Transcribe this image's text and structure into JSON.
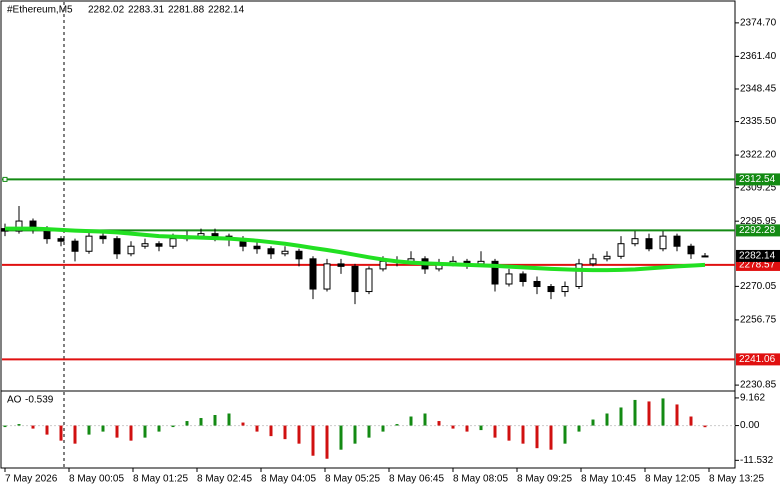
{
  "chart_data": {
    "type": "candlestick",
    "symbol": "#Ethereum,M5",
    "open": [
      2293,
      2292,
      2296,
      2293,
      2289,
      2288,
      2284,
      2290,
      2289,
      2283,
      2286,
      2287,
      2286,
      2289,
      2290,
      2291,
      2290,
      2289,
      2286,
      2285,
      2283,
      2284,
      2281,
      2269,
      2279,
      2278,
      2268,
      2277,
      2280,
      2280,
      2281,
      2277,
      2279,
      2280,
      2279,
      2280,
      2271,
      2275,
      2272,
      2270,
      2268,
      2270,
      2279,
      2281,
      2282,
      2287,
      2289,
      2285,
      2290,
      2286,
      2282.02
    ],
    "high": [
      2295,
      2302,
      2297,
      2294,
      2290,
      2289,
      2292,
      2292,
      2290,
      2288,
      2289,
      2288,
      2291,
      2292,
      2293,
      2293,
      2291,
      2290,
      2288,
      2286,
      2286,
      2285,
      2282,
      2281,
      2281,
      2279,
      2278,
      2282,
      2282,
      2284,
      2282,
      2281,
      2282,
      2281,
      2284,
      2281,
      2277,
      2276,
      2274,
      2271,
      2272,
      2281,
      2283,
      2284,
      2290,
      2292,
      2291,
      2292,
      2291,
      2287,
      2283.31
    ],
    "low": [
      2290,
      2291,
      2291,
      2287,
      2286,
      2280,
      2283,
      2287,
      2281,
      2282,
      2285,
      2284,
      2285,
      2288,
      2289,
      2288,
      2286,
      2284,
      2283,
      2281,
      2282,
      2278,
      2265,
      2268,
      2275,
      2263,
      2267,
      2276,
      2278,
      2279,
      2275,
      2276,
      2278,
      2277,
      2278,
      2268,
      2270,
      2270,
      2267,
      2265,
      2266,
      2269,
      2278,
      2280,
      2281,
      2286,
      2284,
      2284,
      2284,
      2281,
      2281.88
    ],
    "close": [
      2292,
      2296,
      2293,
      2289,
      2288,
      2284,
      2290,
      2289,
      2283,
      2286,
      2287,
      2286,
      2289,
      2290,
      2291,
      2290,
      2289,
      2286,
      2285,
      2283,
      2284,
      2281,
      2269,
      2279,
      2278,
      2268,
      2277,
      2280,
      2280,
      2281,
      2277,
      2279,
      2280,
      2279,
      2280,
      2271,
      2275,
      2272,
      2270,
      2268,
      2270,
      2279,
      2281,
      2282,
      2287,
      2289,
      2285,
      2290,
      2286,
      2283,
      2282.14
    ],
    "ma": {
      "color": "#22e022",
      "values": [
        2293,
        2293,
        2293,
        2292.8,
        2292.5,
        2292.2,
        2292,
        2291.8,
        2291.5,
        2291,
        2290.5,
        2290,
        2289.8,
        2289.6,
        2289.4,
        2289.2,
        2289,
        2288.6,
        2288.2,
        2287.6,
        2287,
        2286.2,
        2285.3,
        2284.5,
        2283.6,
        2282.6,
        2281.6,
        2280.7,
        2280,
        2279.5,
        2279.2,
        2279,
        2278.8,
        2278.6,
        2278.4,
        2278.2,
        2277.9,
        2277.6,
        2277.3,
        2277,
        2276.8,
        2276.6,
        2276.5,
        2276.5,
        2276.6,
        2276.8,
        2277.2,
        2277.6,
        2278,
        2278.3,
        2278.6
      ]
    },
    "levels": [
      {
        "value": 2312.54,
        "color": "#138a13"
      },
      {
        "value": 2292.28,
        "color": "#138a13"
      },
      {
        "value": 2278.57,
        "color": "#e01010"
      },
      {
        "value": 2241.06,
        "color": "#e01010"
      }
    ],
    "ylim": [
      2229.3,
      2381.8
    ],
    "yticks": [
      {
        "value": 2374.7,
        "label": "2374.70"
      },
      {
        "value": 2361.4,
        "label": "2361.40"
      },
      2348.45,
      {
        "value": 2335.5,
        "label": "2335.50"
      },
      {
        "value": 2322.2,
        "label": "2322.20"
      },
      2309.25,
      2295.95,
      2270.05,
      2256.75,
      2230.85
    ],
    "indicator": {
      "name": "AO",
      "up_color": "#138a13",
      "down_color": "#d01010",
      "values": [
        -0.5,
        0.5,
        -1,
        -3,
        -5,
        -6,
        -3,
        -2,
        -4,
        -5,
        -4,
        -2,
        -0.5,
        1.5,
        2.5,
        3.5,
        4,
        1,
        -2,
        -3.5,
        -4.5,
        -6,
        -10,
        -11,
        -8,
        -6,
        -4,
        -2,
        0.5,
        3,
        4,
        1.5,
        -1,
        -2,
        -1.5,
        -4,
        -5,
        -6,
        -7.5,
        -8,
        -6,
        -2,
        2,
        4,
        6,
        8.5,
        8,
        9,
        7,
        3,
        -0.539
      ],
      "ylim": [
        -13.74,
        11.13
      ],
      "yticks": [
        9.162,
        {
          "value": 0,
          "label": "0.00"
        },
        -11.532
      ]
    },
    "x_labels": [
      "7 May 2026",
      "8 May 00:05",
      "8 May 01:25",
      "8 May 02:45",
      "8 May 04:05",
      "8 May 05:25",
      "8 May 06:45",
      "8 May 08:05",
      "8 May 09:25",
      "8 May 10:45",
      "8 May 12:05",
      "8 May 13:25"
    ]
  }
}
